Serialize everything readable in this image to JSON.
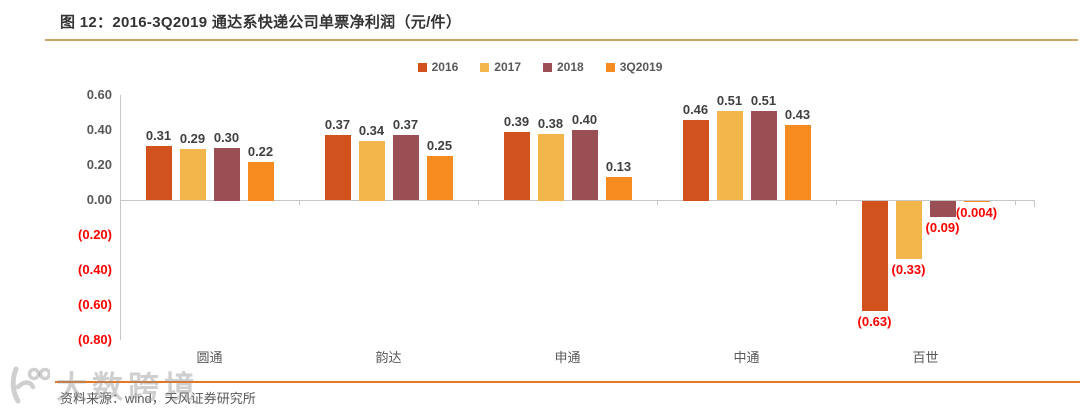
{
  "header": {
    "title": "图 12：2016-3Q2019 通达系快递公司单票净利润（元/件）"
  },
  "chart_data": {
    "type": "bar",
    "title": "图 12：2016-3Q2019 通达系快递公司单票净利润（元/件）",
    "xlabel": "",
    "ylabel": "单票净利润（元/件）",
    "categories": [
      "圆通",
      "韵达",
      "申通",
      "中通",
      "百世"
    ],
    "series": [
      {
        "name": "2016",
        "color": "#D2521E",
        "values": [
          0.31,
          0.37,
          0.39,
          0.46,
          -0.63
        ],
        "labels": [
          "0.31",
          "0.37",
          "0.39",
          "0.46",
          "(0.63)"
        ]
      },
      {
        "name": "2017",
        "color": "#F3B64A",
        "values": [
          0.29,
          0.34,
          0.38,
          0.51,
          -0.33
        ],
        "labels": [
          "0.29",
          "0.34",
          "0.38",
          "0.51",
          "(0.33)"
        ]
      },
      {
        "name": "2018",
        "color": "#9A4F54",
        "values": [
          0.3,
          0.37,
          0.4,
          0.51,
          -0.09
        ],
        "labels": [
          "0.30",
          "0.37",
          "0.40",
          "0.51",
          "(0.09)"
        ]
      },
      {
        "name": "3Q2019",
        "color": "#F68B1F",
        "values": [
          0.22,
          0.25,
          0.13,
          0.43,
          -0.004
        ],
        "labels": [
          "0.22",
          "0.25",
          "0.13",
          "0.43",
          "(0.004)"
        ]
      }
    ],
    "y_ticks": [
      {
        "value": 0.6,
        "label": "0.60"
      },
      {
        "value": 0.4,
        "label": "0.40"
      },
      {
        "value": 0.2,
        "label": "0.20"
      },
      {
        "value": 0.0,
        "label": "0.00"
      },
      {
        "value": -0.2,
        "label": "(0.20)"
      },
      {
        "value": -0.4,
        "label": "(0.40)"
      },
      {
        "value": -0.6,
        "label": "(0.60)"
      },
      {
        "value": -0.8,
        "label": "(0.80)"
      }
    ],
    "ylim": [
      -0.8,
      0.6
    ],
    "grid": false,
    "legend_position": "top-center",
    "positive_label_color": "#404040",
    "negative_label_color": "#FF0000"
  },
  "footer": {
    "source": "资料来源：wind，天风证券研究所"
  },
  "watermark": {
    "text": "大数跨境"
  },
  "colors": {
    "title_underline": "#C9A46B",
    "footer_line": "#E87722",
    "axis": "#C6C6C6",
    "tick_label": "#595959",
    "negative": "#FF0000"
  }
}
